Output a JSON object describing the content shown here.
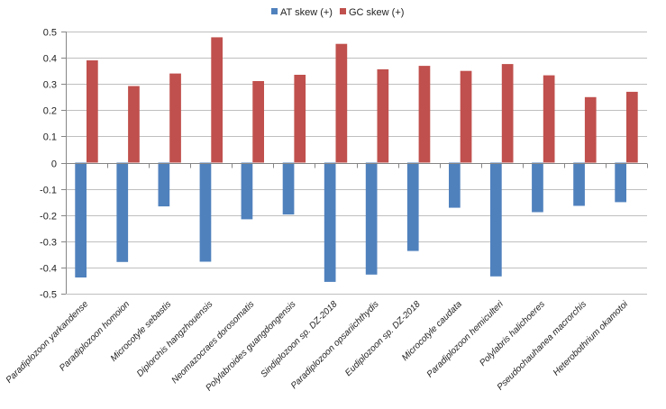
{
  "chart_data": {
    "type": "bar",
    "title": "",
    "xlabel": "",
    "ylabel": "",
    "ylim": [
      -0.5,
      0.5
    ],
    "yticks": [
      "0.5",
      "0.4",
      "0.3",
      "0.2",
      "0.1",
      "0",
      "-0.1",
      "-0.2",
      "-0.3",
      "-0.4",
      "-0.5"
    ],
    "ytick_values": [
      0.5,
      0.4,
      0.3,
      0.2,
      0.1,
      0,
      -0.1,
      -0.2,
      -0.3,
      -0.4,
      -0.5
    ],
    "grid": true,
    "legend_position": "top-center",
    "categories": [
      "Paradiplozoon yarkandense",
      "Paradiplozoon homoion",
      "Microcotyle sebastis",
      "Diplorchis hangzhouensis",
      "Neomazocraes dorosomatis",
      "Polylabroides guangdongensis",
      "Sindiplozoon sp. DZ-2018",
      "Paradiplozoon opsariichthydis",
      "Eudiplozoon sp. DZ-2018",
      "Microcotyle caudata",
      "Paradiplozoon hemiculteri",
      "Polylabris halichoeres",
      "Pseudochauhanea macrorchis",
      "Heterobothrium okamotoi"
    ],
    "series": [
      {
        "name": "AT skew (+)",
        "color": "#4F81BD",
        "values": [
          -0.438,
          -0.379,
          -0.167,
          -0.378,
          -0.216,
          -0.198,
          -0.455,
          -0.427,
          -0.337,
          -0.172,
          -0.434,
          -0.189,
          -0.165,
          -0.151
        ]
      },
      {
        "name": "GC skew (+)",
        "color": "#C0504D",
        "values": [
          0.39,
          0.292,
          0.34,
          0.478,
          0.311,
          0.335,
          0.453,
          0.356,
          0.369,
          0.35,
          0.376,
          0.333,
          0.25,
          0.27
        ]
      }
    ]
  }
}
